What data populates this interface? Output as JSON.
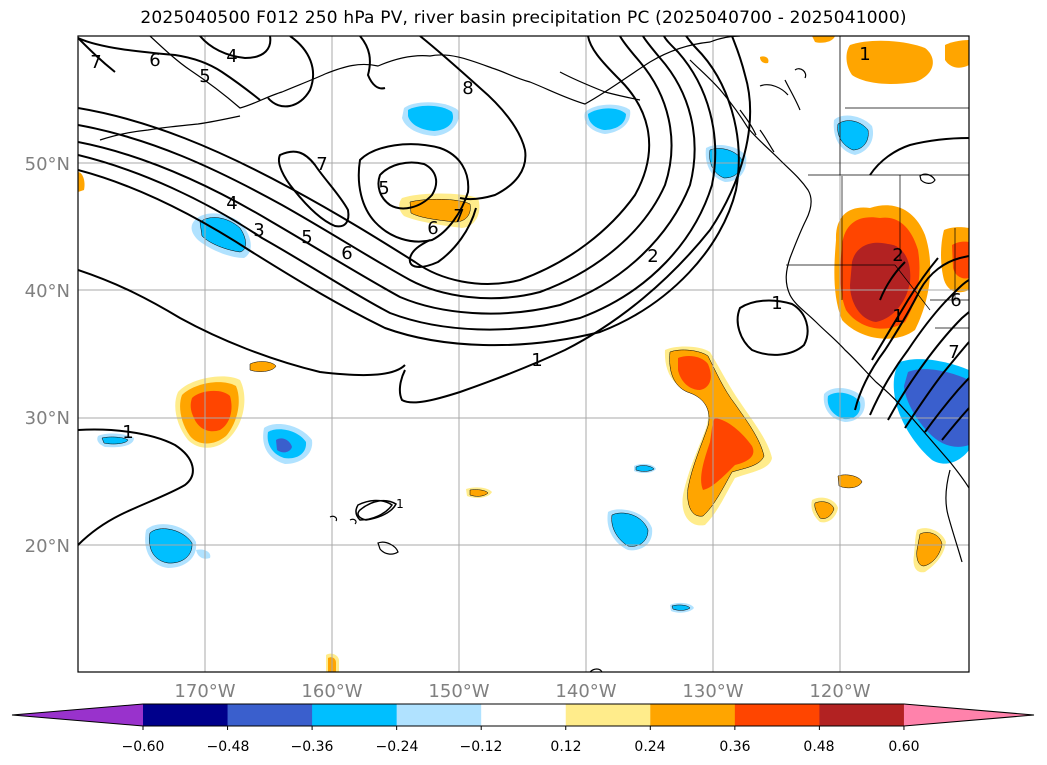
{
  "title": "2025040500 F012 250 hPa PV, river basin precipitation PC (2025040700 - 2025041000)",
  "map": {
    "lon_labels": [
      "170°W",
      "160°W",
      "150°W",
      "140°W",
      "130°W",
      "120°W"
    ],
    "lat_labels": [
      "50°N",
      "40°N",
      "30°N",
      "20°N"
    ],
    "contour_labels": [
      "6",
      "4",
      "5",
      "7",
      "8",
      "7",
      "5",
      "6",
      "7",
      "4",
      "3",
      "5",
      "6",
      "2",
      "1",
      "1",
      "1",
      "2",
      "6",
      "1",
      "7",
      "1",
      "1"
    ]
  },
  "colorbar": {
    "ticks": [
      "−0.60",
      "−0.48",
      "−0.36",
      "−0.24",
      "−0.12",
      "0.12",
      "0.24",
      "0.36",
      "0.48",
      "0.60"
    ],
    "colors": [
      "#9932cc",
      "#00008b",
      "#3a5fcd",
      "#00bfff",
      "#b0e2ff",
      "#ffffff",
      "#ffec8b",
      "#ffa500",
      "#ff4500",
      "#b22222",
      "#ff82ab"
    ]
  }
}
